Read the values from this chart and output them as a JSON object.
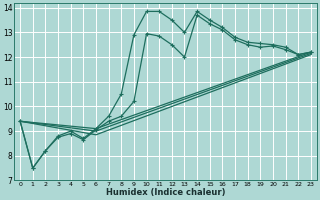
{
  "xlabel": "Humidex (Indice chaleur)",
  "bg_color": "#aed8d4",
  "grid_color": "#ffffff",
  "line_color": "#1e6e5e",
  "xlim": [
    -0.5,
    23.5
  ],
  "ylim": [
    7,
    14.2
  ],
  "yticks": [
    7,
    8,
    9,
    10,
    11,
    12,
    13,
    14
  ],
  "xticks": [
    0,
    1,
    2,
    3,
    4,
    5,
    6,
    7,
    8,
    9,
    10,
    11,
    12,
    13,
    14,
    15,
    16,
    17,
    18,
    19,
    20,
    21,
    22,
    23
  ],
  "line1_x": [
    0,
    1,
    2,
    3,
    4,
    5,
    6,
    7,
    8,
    9,
    10,
    11,
    12,
    13,
    14,
    15,
    16,
    17,
    18,
    19,
    20,
    21,
    22,
    23
  ],
  "line1_y": [
    9.4,
    7.5,
    8.2,
    8.8,
    9.0,
    8.7,
    9.1,
    9.6,
    10.5,
    12.9,
    13.85,
    13.85,
    13.5,
    13.0,
    13.85,
    13.5,
    13.2,
    12.8,
    12.6,
    12.55,
    12.5,
    12.4,
    12.1,
    12.2
  ],
  "line2_x": [
    0,
    1,
    2,
    3,
    4,
    5,
    6,
    7,
    8,
    9,
    10,
    11,
    12,
    13,
    14,
    15,
    16,
    17,
    18,
    19,
    20,
    21,
    22,
    23
  ],
  "line2_y": [
    9.4,
    7.5,
    8.2,
    8.75,
    8.9,
    8.65,
    9.05,
    9.4,
    9.6,
    10.2,
    12.95,
    12.85,
    12.5,
    12.0,
    13.7,
    13.35,
    13.1,
    12.7,
    12.5,
    12.4,
    12.45,
    12.3,
    12.1,
    12.2
  ],
  "line3_x": [
    0,
    6,
    23
  ],
  "line3_y": [
    9.4,
    9.1,
    12.2
  ],
  "line4_x": [
    0,
    6,
    23
  ],
  "line4_y": [
    9.4,
    9.0,
    12.15
  ],
  "line5_x": [
    0,
    6,
    23
  ],
  "line5_y": [
    9.4,
    8.85,
    12.1
  ]
}
